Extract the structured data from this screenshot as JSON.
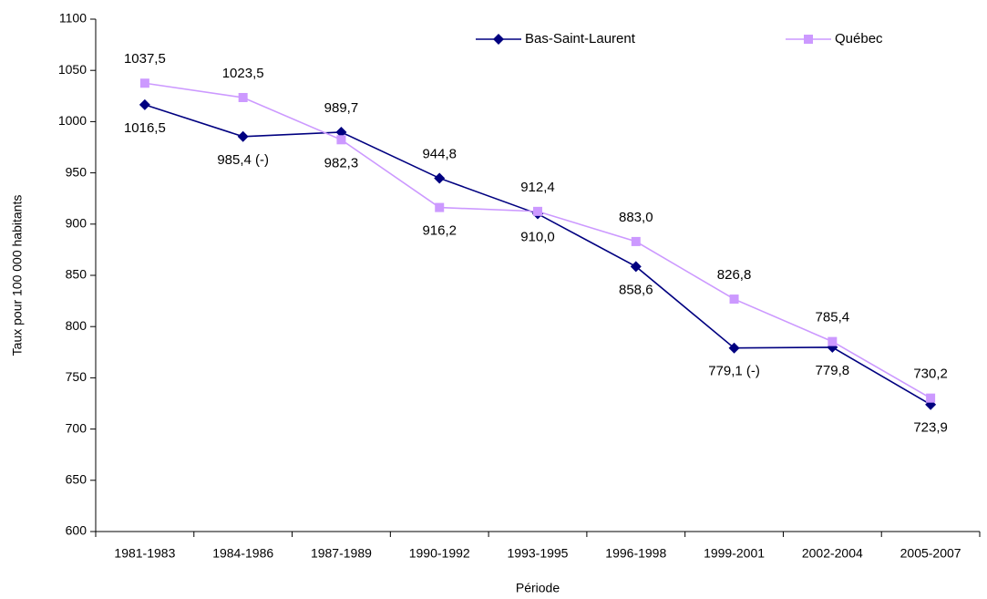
{
  "chart_data": {
    "type": "line",
    "x_label": "Période",
    "y_label": "Taux pour 100 000 habitants",
    "categories": [
      "1981-1983",
      "1984-1986",
      "1987-1989",
      "1990-1992",
      "1993-1995",
      "1996-1998",
      "1999-2001",
      "2002-2004",
      "2005-2007"
    ],
    "series": [
      {
        "name": "Bas-Saint-Laurent",
        "color": "#000080",
        "marker": "diamond",
        "values": [
          1016.5,
          985.4,
          989.7,
          944.8,
          910.0,
          858.6,
          779.1,
          779.8,
          723.9
        ],
        "value_labels": [
          "1016,5",
          "985,4 (-)",
          "989,7",
          "944,8",
          "910,0",
          "858,6",
          "779,1 (-)",
          "779,8",
          "723,9"
        ]
      },
      {
        "name": "Québec",
        "color": "#cc99ff",
        "marker": "square",
        "values": [
          1037.5,
          1023.5,
          982.3,
          916.2,
          912.4,
          883.0,
          826.8,
          785.4,
          730.2
        ],
        "value_labels": [
          "1037,5",
          "1023,5",
          "982,3",
          "916,2",
          "912,4",
          "883,0",
          "826,8",
          "785,4",
          "730,2"
        ]
      }
    ],
    "ylim": [
      600,
      1100
    ],
    "yticks": [
      600,
      650,
      700,
      750,
      800,
      850,
      900,
      950,
      1000,
      1050,
      1100
    ],
    "grid": false,
    "legend": "top"
  }
}
